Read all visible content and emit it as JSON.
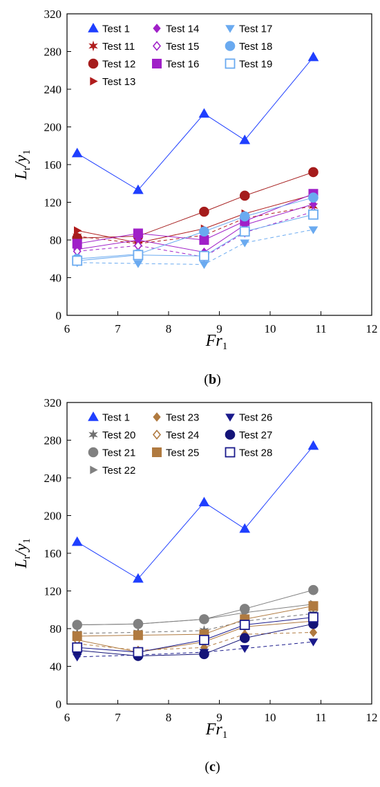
{
  "chart_data": [
    {
      "type": "line",
      "panel_label_letter": "b",
      "xlabel": "Fr",
      "xlabel_sub": "1",
      "ylabel": "L",
      "ylabel_sub1": "r",
      "ylabel_mid": "/y",
      "ylabel_sub2": "1",
      "xlim": [
        6,
        12
      ],
      "ylim": [
        0,
        320
      ],
      "xticks": [
        "6",
        "7",
        "8",
        "9",
        "10",
        "11",
        "12"
      ],
      "yticks": [
        "0",
        "40",
        "80",
        "120",
        "160",
        "200",
        "240",
        "280",
        "320"
      ],
      "x": [
        6.2,
        7.4,
        8.7,
        9.5,
        10.85
      ],
      "legend_position": "top-left",
      "legend_columns": 3,
      "series": [
        {
          "name": "Test 1",
          "values": [
            172,
            133,
            214,
            186,
            274
          ],
          "color": "#1f3fff",
          "marker": "triangle-up",
          "fill": true,
          "dash": false
        },
        {
          "name": "Test 11",
          "values": [
            84,
            76,
            85,
            103,
            116
          ],
          "color": "#b01c1c",
          "marker": "star",
          "fill": true,
          "dash": true
        },
        {
          "name": "Test 12",
          "values": [
            82,
            84,
            110,
            127,
            152
          ],
          "color": "#a51c1c",
          "marker": "circle",
          "fill": true,
          "dash": false
        },
        {
          "name": "Test 13",
          "values": [
            90,
            77,
            92,
            108,
            128
          ],
          "color": "#b01c1c",
          "marker": "triangle-right",
          "fill": true,
          "dash": false
        },
        {
          "name": "Test 14",
          "values": [
            70,
            80,
            67,
            96,
            118
          ],
          "color": "#a020c8",
          "marker": "diamond",
          "fill": true,
          "dash": false
        },
        {
          "name": "Test 15",
          "values": [
            68,
            74,
            62,
            88,
            110
          ],
          "color": "#a020c8",
          "marker": "diamond",
          "fill": false,
          "dash": true
        },
        {
          "name": "Test 16",
          "values": [
            76,
            87,
            80,
            100,
            129
          ],
          "color": "#a020c8",
          "marker": "square",
          "fill": true,
          "dash": false
        },
        {
          "name": "Test 17",
          "values": [
            56,
            55,
            54,
            77,
            91
          ],
          "color": "#6aaaf0",
          "marker": "triangle-down",
          "fill": true,
          "dash": true
        },
        {
          "name": "Test 18",
          "values": [
            60,
            65,
            89,
            105,
            125
          ],
          "color": "#6aaaf0",
          "marker": "circle",
          "fill": true,
          "dash": false
        },
        {
          "name": "Test 19",
          "values": [
            58,
            64,
            63,
            89,
            107
          ],
          "color": "#6aaaf0",
          "marker": "square",
          "fill": false,
          "dash": false
        }
      ]
    },
    {
      "type": "line",
      "panel_label_letter": "c",
      "xlabel": "Fr",
      "xlabel_sub": "1",
      "ylabel": "L",
      "ylabel_sub1": "r",
      "ylabel_mid": "/y",
      "ylabel_sub2": "1",
      "xlim": [
        6,
        12
      ],
      "ylim": [
        0,
        320
      ],
      "xticks": [
        "6",
        "7",
        "8",
        "9",
        "10",
        "11",
        "12"
      ],
      "yticks": [
        "0",
        "40",
        "80",
        "120",
        "160",
        "200",
        "240",
        "280",
        "320"
      ],
      "x": [
        6.2,
        7.4,
        8.7,
        9.5,
        10.85
      ],
      "legend_position": "top-left",
      "legend_columns": 3,
      "series": [
        {
          "name": "Test 1",
          "values": [
            172,
            133,
            214,
            186,
            274
          ],
          "color": "#1f3fff",
          "marker": "triangle-up",
          "fill": true,
          "dash": false
        },
        {
          "name": "Test 20",
          "values": [
            75,
            76,
            78,
            88,
            96
          ],
          "color": "#707070",
          "marker": "star",
          "fill": true,
          "dash": true
        },
        {
          "name": "Test 21",
          "values": [
            84,
            85,
            90,
            101,
            121
          ],
          "color": "#808080",
          "marker": "circle",
          "fill": true,
          "dash": false
        },
        {
          "name": "Test 22",
          "values": [
            84,
            85,
            90,
            97,
            106
          ],
          "color": "#808080",
          "marker": "triangle-right",
          "fill": true,
          "dash": false
        },
        {
          "name": "Test 23",
          "values": [
            64,
            57,
            60,
            74,
            76
          ],
          "color": "#b07a40",
          "marker": "diamond",
          "fill": true,
          "dash": true
        },
        {
          "name": "Test 24",
          "values": [
            68,
            55,
            66,
            82,
            88
          ],
          "color": "#b07a40",
          "marker": "diamond",
          "fill": false,
          "dash": false
        },
        {
          "name": "Test 25",
          "values": [
            72,
            73,
            74,
            90,
            104
          ],
          "color": "#b07a40",
          "marker": "square",
          "fill": true,
          "dash": false
        },
        {
          "name": "Test 26",
          "values": [
            50,
            52,
            55,
            59,
            66
          ],
          "color": "#1a1a8c",
          "marker": "triangle-down",
          "fill": true,
          "dash": true
        },
        {
          "name": "Test 27",
          "values": [
            57,
            51,
            53,
            70,
            85
          ],
          "color": "#141478",
          "marker": "circle",
          "fill": true,
          "dash": false
        },
        {
          "name": "Test 28",
          "values": [
            60,
            55,
            68,
            84,
            92
          ],
          "color": "#1a1a8c",
          "marker": "square",
          "fill": false,
          "dash": false
        }
      ]
    }
  ]
}
